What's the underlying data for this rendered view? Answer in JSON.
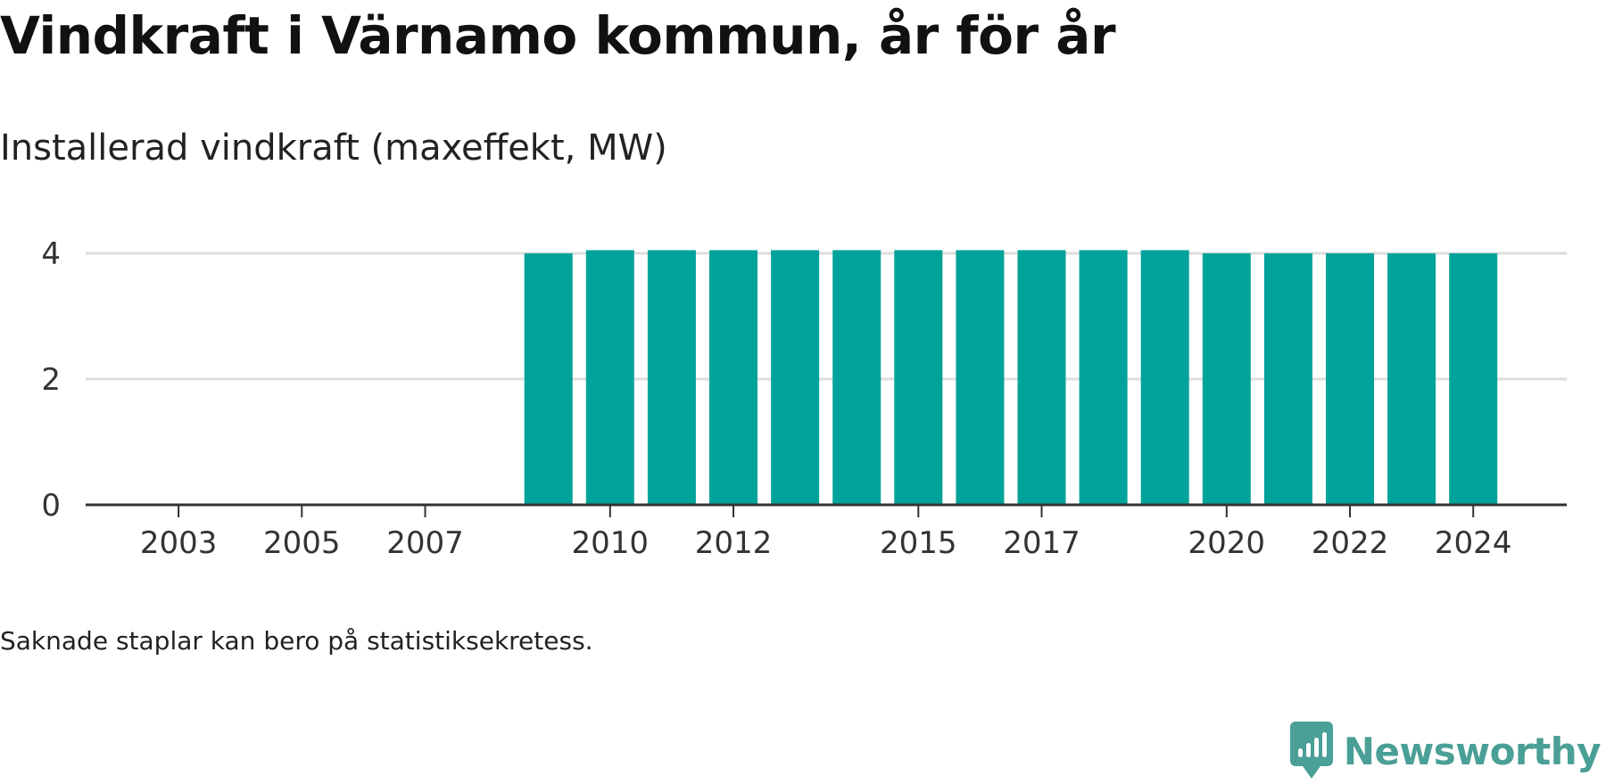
{
  "header": {
    "title": "Vindkraft i Värnamo kommun, år för år",
    "subtitle": "Installerad vindkraft (maxeffekt, MW)"
  },
  "footer": {
    "note": "Saknade staplar kan bero på statistiksekretess.",
    "brand": "Newsworthy"
  },
  "colors": {
    "bar": "#00A39A",
    "grid": "#dddddd",
    "axis": "#333333",
    "brand": "#4a9f96"
  },
  "chart_data": {
    "type": "bar",
    "title": "Installerad vindkraft (maxeffekt, MW)",
    "xlabel": "",
    "ylabel": "",
    "grid": true,
    "categories": [
      2002,
      2003,
      2004,
      2005,
      2006,
      2007,
      2008,
      2009,
      2010,
      2011,
      2012,
      2013,
      2014,
      2015,
      2016,
      2017,
      2018,
      2019,
      2020,
      2021,
      2022,
      2023,
      2024
    ],
    "values": [
      null,
      null,
      null,
      null,
      null,
      null,
      null,
      4.0,
      4.05,
      4.05,
      4.05,
      4.05,
      4.05,
      4.05,
      4.05,
      4.05,
      4.05,
      4.05,
      4.0,
      4.0,
      4.0,
      4.0,
      4.0
    ],
    "ylim": [
      0,
      4
    ],
    "yticks": [
      0,
      2,
      4
    ],
    "xticks": [
      2003,
      2005,
      2007,
      2010,
      2012,
      2015,
      2017,
      2020,
      2022,
      2024
    ]
  }
}
